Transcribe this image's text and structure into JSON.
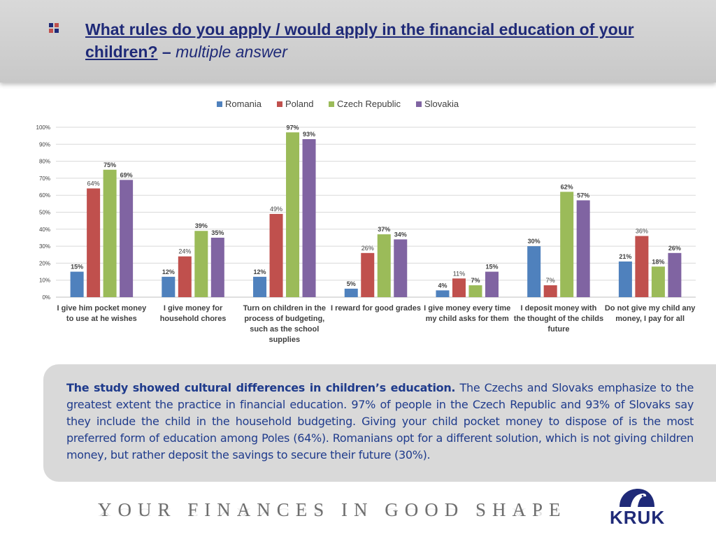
{
  "header": {
    "title_main": "What rules do you apply / would apply in the financial education of your children?",
    "title_dash": " – ",
    "title_suffix": "multiple answer"
  },
  "chart_data": {
    "type": "bar",
    "legend_position": "top",
    "ylim": [
      0,
      100
    ],
    "yticks": [
      "0%",
      "10%",
      "20%",
      "30%",
      "40%",
      "50%",
      "60%",
      "70%",
      "80%",
      "90%",
      "100%"
    ],
    "grid": true,
    "categories": [
      [
        "I give him pocket money",
        "to use at he wishes"
      ],
      [
        "I give money for",
        "household chores"
      ],
      [
        "Turn on children in the",
        "process of budgeting,",
        "such as the school",
        "supplies"
      ],
      [
        "I reward for good grades"
      ],
      [
        "I give money every time",
        "my child asks for them"
      ],
      [
        "I deposit money with",
        "the thought of the childs",
        "future"
      ],
      [
        "Do not give my child any",
        "money, I pay for all"
      ]
    ],
    "series": [
      {
        "name": "Romania",
        "color": "#4f81bd",
        "values": [
          15,
          12,
          12,
          5,
          4,
          30,
          21
        ]
      },
      {
        "name": "Poland",
        "color": "#c0504d",
        "values": [
          64,
          24,
          49,
          26,
          11,
          7,
          36
        ]
      },
      {
        "name": "Czech Republic",
        "color": "#9bbb59",
        "values": [
          75,
          39,
          97,
          37,
          7,
          62,
          18
        ]
      },
      {
        "name": "Slovakia",
        "color": "#8064a2",
        "values": [
          69,
          35,
          93,
          34,
          15,
          57,
          26
        ]
      }
    ]
  },
  "summary": {
    "lead": "The study showed cultural differences in children’s education.",
    "body": " The Czechs and Slovaks emphasize to the greatest extent the practice in financial education. 97% of people in the Czech Republic and 93% of Slovaks say they include the child in the household budgeting. Giving your child pocket money to dispose of is the most preferred form of education among Poles (64%). Romanians opt for a different solution, which is not giving children money, but rather deposit the savings to secure their future (30%)."
  },
  "footer": {
    "slogan": "YOUR FINANCES IN GOOD SHAPE",
    "logo": "KRUK"
  }
}
